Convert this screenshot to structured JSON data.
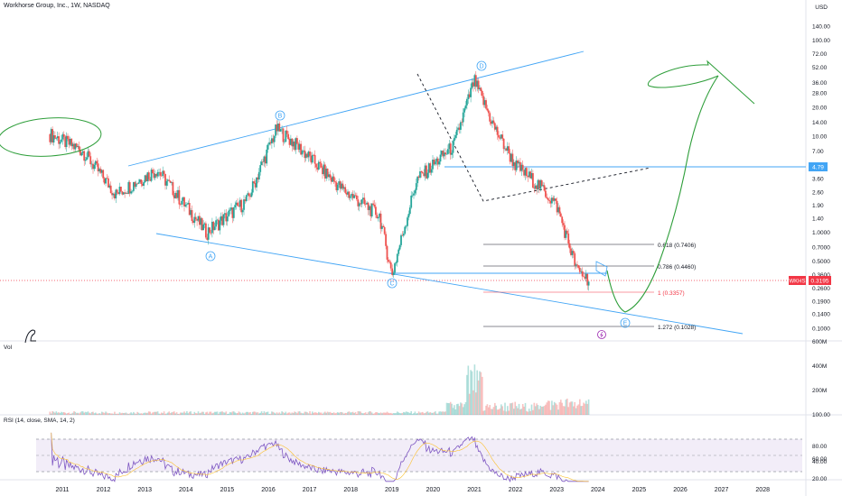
{
  "header": {
    "title": "Workhorse Group, Inc., 1W, NASDAQ",
    "currency": "USD"
  },
  "price_axis": {
    "ticks": [
      "140.00",
      "100.00",
      "72.00",
      "52.00",
      "36.00",
      "28.00",
      "20.00",
      "14.00",
      "10.00",
      "7.00",
      "4.79",
      "3.60",
      "2.60",
      "1.90",
      "1.40",
      "1.0000",
      "0.7000",
      "0.5000",
      "0.3600",
      "0.3195",
      "0.2600",
      "0.1900",
      "0.1400",
      "0.1000"
    ]
  },
  "volume_pane": {
    "label": "Vol",
    "ticks": [
      "600M",
      "400M",
      "200M",
      "100.00"
    ]
  },
  "rsi_pane": {
    "label": "RSI (14, close, SMA, 14, 2)",
    "ticks": [
      "80.00",
      "60.00",
      "40.00",
      "20.00"
    ]
  },
  "time_axis": {
    "ticks": [
      "2011",
      "2012",
      "2013",
      "2014",
      "2015",
      "2016",
      "2017",
      "2018",
      "2019",
      "2020",
      "2021",
      "2022",
      "2023",
      "2024",
      "2025",
      "2026",
      "2027",
      "2028"
    ]
  },
  "symbol_badge": {
    "symbol": "WKHS",
    "price": "0.3195"
  },
  "level_badge": {
    "price": "4.79"
  },
  "fib_levels": [
    {
      "label": "0.618 (0.7406)"
    },
    {
      "label": "0.786 (0.4460)"
    },
    {
      "label": "1 (0.3357)"
    },
    {
      "label": "1.272 (0.1028)"
    }
  ],
  "wave_labels": [
    "A",
    "B",
    "C",
    "D",
    "E"
  ],
  "colors": {
    "up": "#26a69a",
    "down": "#ef5350",
    "channel": "#42a5f5",
    "projection": "#2e9e3a",
    "rsi": "#7e57c2",
    "fib_red": "#f23645"
  },
  "chart_data": {
    "type": "candlestick",
    "symbol": "WKHS",
    "interval": "1W",
    "x_range": [
      "2010",
      "2028"
    ],
    "y_scale": "log",
    "series": [
      {
        "x": [
          2010.7,
          2011.5,
          2012.3,
          2013.3,
          2014.5,
          2015.5,
          2016.2,
          2016.7,
          2017.8,
          2018.7,
          2019.0,
          2019.6,
          2020.5,
          2021.0,
          2021.5,
          2022.0,
          2022.6,
          2023.0,
          2023.5,
          2023.8
        ],
        "y": [
          10.5,
          7.0,
          2.5,
          4.5,
          1.0,
          2.2,
          12.0,
          8.0,
          2.8,
          1.5,
          0.36,
          3.5,
          8.0,
          38.0,
          12.0,
          5.0,
          3.0,
          1.9,
          0.4,
          0.3195
        ]
      }
    ]
  }
}
